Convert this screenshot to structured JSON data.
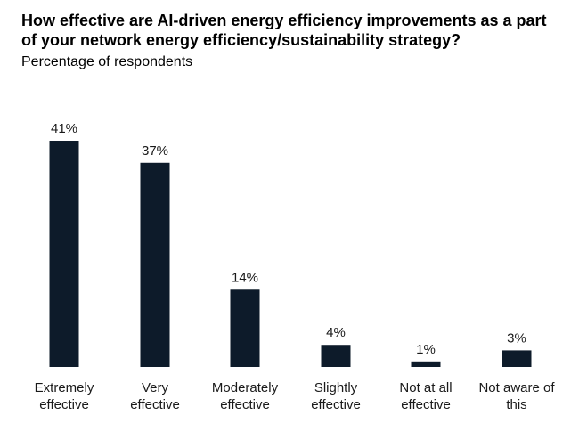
{
  "chart_data": {
    "type": "bar",
    "title": "How effective are AI-driven energy efficiency improvements as a part of your network energy efficiency/sustainability strategy?",
    "subtitle": "Percentage of respondents",
    "xlabel": "",
    "ylabel": "",
    "categories": [
      [
        "Extremely",
        "effective"
      ],
      [
        "Very",
        "effective"
      ],
      [
        "Moderately",
        "effective"
      ],
      [
        "Slightly",
        "effective"
      ],
      [
        "Not at all",
        "effective"
      ],
      [
        "Not aware of",
        "this"
      ]
    ],
    "values": [
      41,
      37,
      14,
      4,
      1,
      3
    ],
    "data_labels": [
      "41%",
      "37%",
      "14%",
      "4%",
      "1%",
      "3%"
    ],
    "ylim": [
      0,
      41
    ],
    "grid": false,
    "legend": "none",
    "bar_color": "#0d1b2a"
  }
}
